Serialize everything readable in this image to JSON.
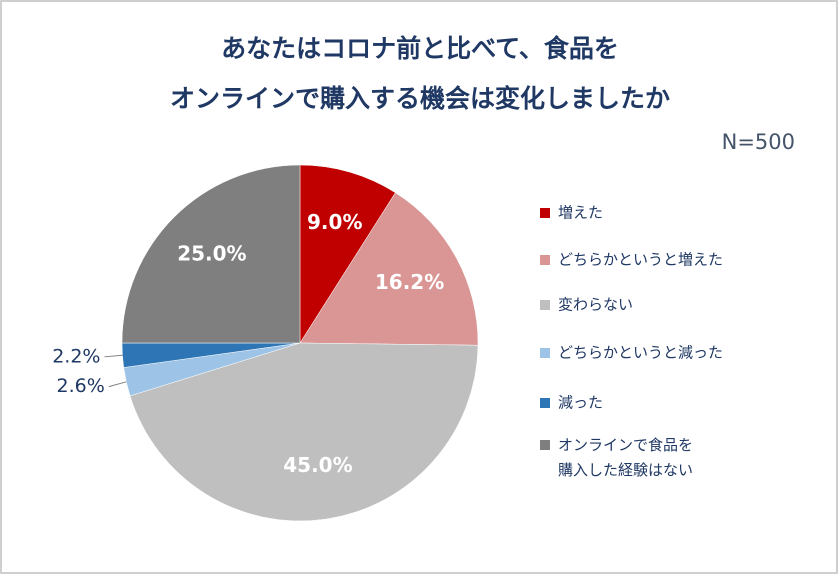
{
  "chart_data": {
    "type": "pie",
    "title": [
      "あなたはコロナ前と比べて、食品を",
      "オンラインで購入する機会は変化しましたか"
    ],
    "subtitle": "N=500",
    "categories": [
      "増えた",
      "どちらかというと増えた",
      "変わらない",
      "どちらかというと減った",
      "減った",
      "オンラインで食品を\n購入した経験はない"
    ],
    "values": [
      9.0,
      16.2,
      45.0,
      2.6,
      2.2,
      25.0
    ],
    "value_labels": [
      "9.0%",
      "16.2%",
      "45.0%",
      "2.6%",
      "2.2%",
      "25.0%"
    ],
    "colors": [
      "#c00000",
      "#d99694",
      "#bfbfbf",
      "#9dc3e6",
      "#2e75b6",
      "#7f7f7f"
    ],
    "legend": "right"
  }
}
